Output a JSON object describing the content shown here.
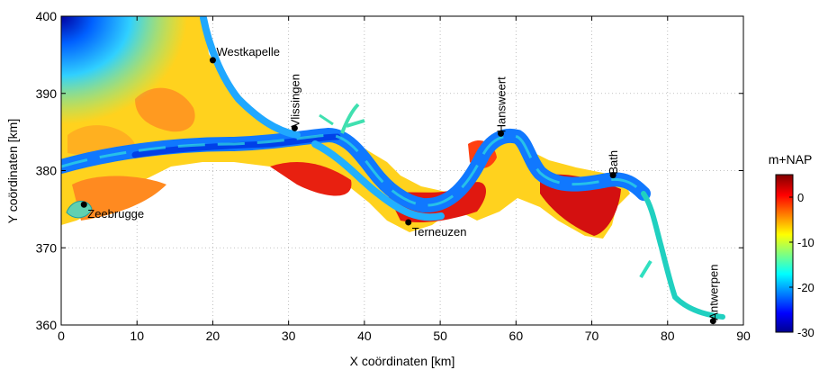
{
  "chart_data": {
    "type": "heatmap",
    "xlabel": "X coördinaten [km]",
    "ylabel": "Y coördinaten [km]",
    "xlim": [
      0,
      90
    ],
    "ylim": [
      360,
      400
    ],
    "xticks": [
      0,
      10,
      20,
      30,
      40,
      50,
      60,
      70,
      80,
      90
    ],
    "yticks": [
      360,
      370,
      380,
      390,
      400
    ],
    "grid": true,
    "colorbar": {
      "title": "m+NAP",
      "range": [
        -30,
        5
      ],
      "ticks": [
        0,
        -10,
        -20,
        -30
      ],
      "colormap": "jet"
    },
    "locations": [
      {
        "name": "Westkapelle",
        "x": 20.0,
        "y": 394.3,
        "label_rotation": 0
      },
      {
        "name": "Vlissingen",
        "x": 30.8,
        "y": 385.5,
        "label_rotation": -90
      },
      {
        "name": "Hansweert",
        "x": 58.0,
        "y": 384.8,
        "label_rotation": -90
      },
      {
        "name": "Bath",
        "x": 72.8,
        "y": 379.4,
        "label_rotation": -90
      },
      {
        "name": "Zeebrugge",
        "x": 3.0,
        "y": 375.6,
        "label_rotation": 0
      },
      {
        "name": "Terneuzen",
        "x": 45.8,
        "y": 373.3,
        "label_rotation": 0
      },
      {
        "name": "Antwerpen",
        "x": 86.0,
        "y": 360.5,
        "label_rotation": -90
      }
    ]
  }
}
